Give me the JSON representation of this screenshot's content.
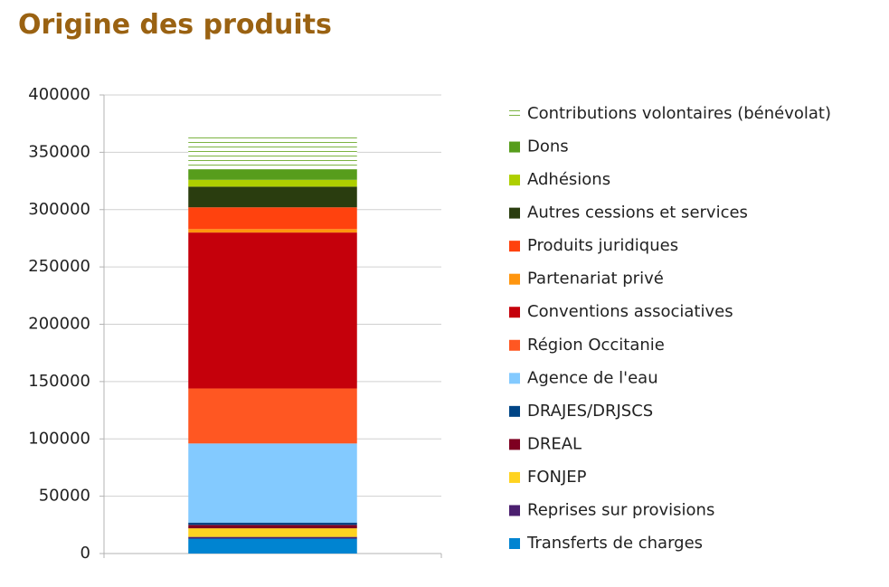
{
  "chart_data": {
    "type": "stacked_bar",
    "title": "Origine des produits",
    "categories": [
      null
    ],
    "ylim": [
      0,
      400000
    ],
    "yticks": [
      0,
      50000,
      100000,
      150000,
      200000,
      250000,
      300000,
      350000,
      400000
    ],
    "grid": true,
    "series": [
      {
        "name": "Transferts de charges",
        "color": "#0084d1",
        "values": [
          13000
        ]
      },
      {
        "name": "Reprises sur provisions",
        "color": "#4b1f6f",
        "values": [
          1500
        ]
      },
      {
        "name": "FONJEP",
        "color": "#ffd320",
        "values": [
          7500
        ]
      },
      {
        "name": "DREAL",
        "color": "#7e0021",
        "values": [
          3000
        ]
      },
      {
        "name": "DRAJES/DRJSCS",
        "color": "#004586",
        "values": [
          2000
        ]
      },
      {
        "name": "Agence de l'eau",
        "color": "#83caff",
        "values": [
          69000
        ]
      },
      {
        "name": "Région Occitanie",
        "color": "#ff5722",
        "values": [
          48000
        ]
      },
      {
        "name": "Conventions associatives",
        "color": "#c5000b",
        "values": [
          136000
        ]
      },
      {
        "name": "Partenariat privé",
        "color": "#ff950e",
        "values": [
          3000
        ]
      },
      {
        "name": "Produits juridiques",
        "color": "#ff420e",
        "values": [
          19000
        ]
      },
      {
        "name": "Autres cessions et services",
        "color": "#2a3d0f",
        "values": [
          18000
        ]
      },
      {
        "name": "Adhésions",
        "color": "#aecf00",
        "values": [
          6000
        ]
      },
      {
        "name": "Dons",
        "color": "#579d1c",
        "values": [
          9000
        ]
      },
      {
        "name": "Contributions volontaires (bénévolat)",
        "color": "#7cb342",
        "hatch": "horizontal",
        "values": [
          30000
        ]
      }
    ]
  }
}
